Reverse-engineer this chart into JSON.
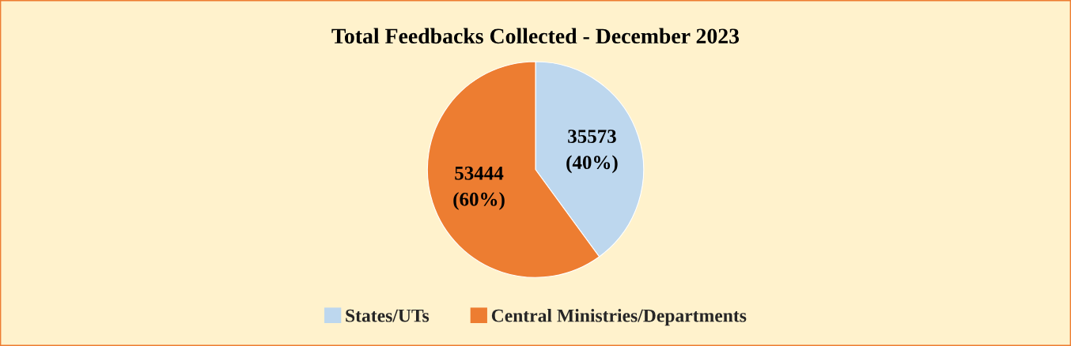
{
  "chart_data": {
    "type": "pie",
    "title": "Total Feedbacks Collected - December 2023",
    "categories": [
      "States/UTs",
      "Central Ministries/Departments"
    ],
    "values": [
      35573,
      53444
    ],
    "colors": [
      "#bdd7ee",
      "#ed7d31"
    ],
    "value_labels": [
      "35573\n(40%)",
      "53444\n(60%)"
    ],
    "legend": "bottom"
  }
}
